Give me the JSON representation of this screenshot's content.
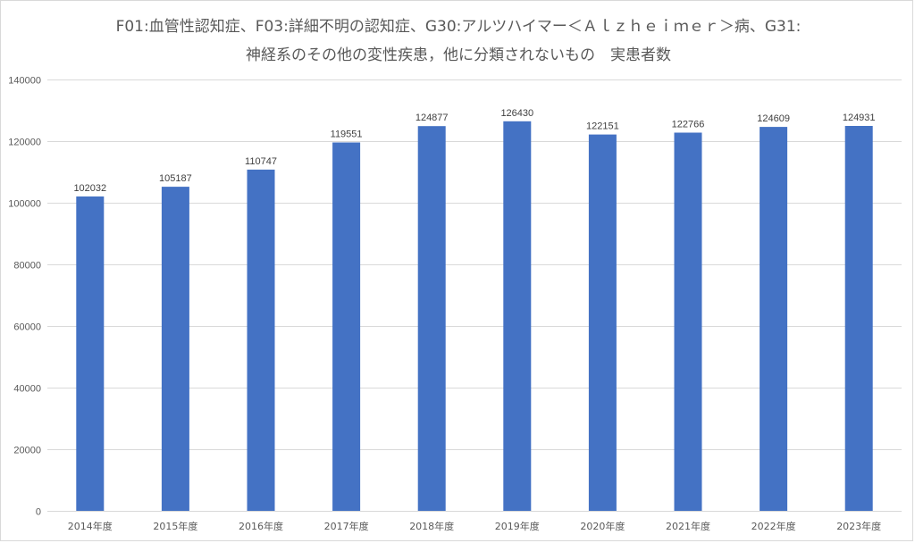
{
  "chart_data": {
    "type": "bar",
    "title_line1": "F01:血管性認知症、F03:詳細不明の認知症、G30:アルツハイマー＜Ａｌｚｈｅｉｍｅｒ＞病、G31:",
    "title_line2": "神経系のその他の変性疾患，他に分類されないもの　実患者数",
    "categories": [
      "2014年度",
      "2015年度",
      "2016年度",
      "2017年度",
      "2018年度",
      "2019年度",
      "2020年度",
      "2021年度",
      "2022年度",
      "2023年度"
    ],
    "values": [
      102032,
      105187,
      110747,
      119551,
      124877,
      126430,
      122151,
      122766,
      124609,
      124931
    ],
    "ylim": [
      0,
      140000
    ],
    "yticks": [
      0,
      20000,
      40000,
      60000,
      80000,
      100000,
      120000,
      140000
    ],
    "grid": true,
    "legend": "none",
    "bar_color": "#4472c4",
    "gridline_color": "#d9d9d9"
  }
}
